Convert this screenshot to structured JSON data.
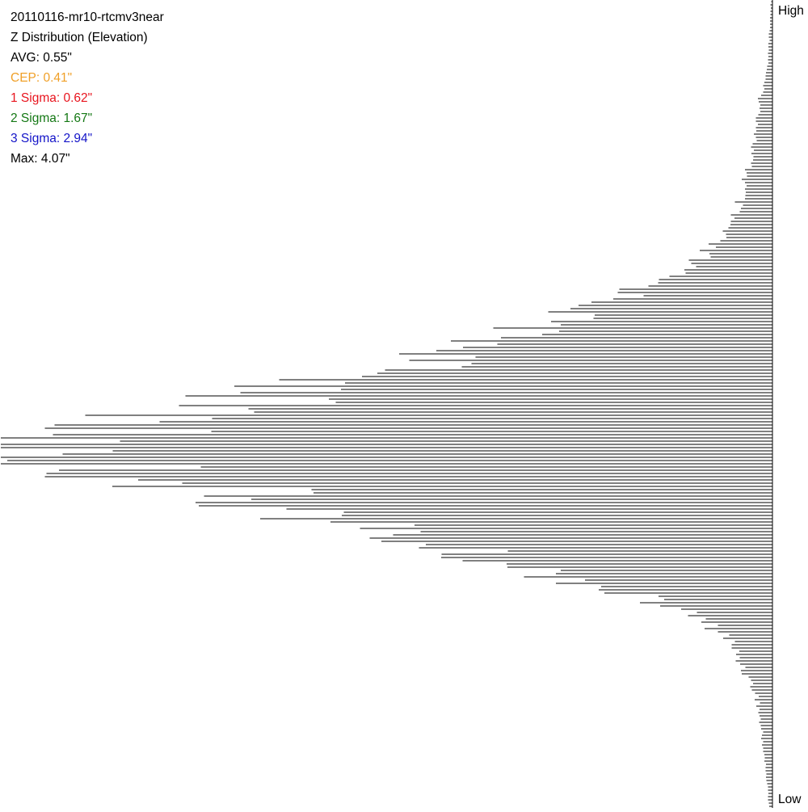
{
  "stats": {
    "title": "20110116-mr10-rtcmv3near",
    "subtitle": "Z Distribution (Elevation)",
    "avg": "AVG: 0.55\"",
    "cep": "CEP: 0.41\"",
    "sigma1": "1 Sigma: 0.62\"",
    "sigma2": "2 Sigma: 1.67\"",
    "sigma3": "3 Sigma: 2.94\"",
    "max": "Max: 4.07\""
  },
  "colors": {
    "text": "#000000",
    "cep": "#f0a028",
    "sigma1": "#e8141e",
    "sigma2": "#147814",
    "sigma3": "#1414c8",
    "bars": "#000000",
    "background": "#ffffff"
  },
  "axis": {
    "top_label": "High",
    "bottom_label": "Low"
  },
  "chart_data": {
    "type": "bar",
    "orientation": "horizontal",
    "grid": false,
    "bin_count": 250,
    "bars_extend_from": "right",
    "peak_bin": 137,
    "peak_value": 1.0,
    "value_scale": "relative (peak = 1)",
    "profile_points": [
      {
        "bin": 0,
        "value": 0.002
      },
      {
        "bin": 20,
        "value": 0.006
      },
      {
        "bin": 30,
        "value": 0.016
      },
      {
        "bin": 40,
        "value": 0.02
      },
      {
        "bin": 50,
        "value": 0.03
      },
      {
        "bin": 60,
        "value": 0.04
      },
      {
        "bin": 70,
        "value": 0.06
      },
      {
        "bin": 80,
        "value": 0.1
      },
      {
        "bin": 90,
        "value": 0.18
      },
      {
        "bin": 100,
        "value": 0.3
      },
      {
        "bin": 110,
        "value": 0.43
      },
      {
        "bin": 120,
        "value": 0.61
      },
      {
        "bin": 128,
        "value": 0.77
      },
      {
        "bin": 133,
        "value": 0.88
      },
      {
        "bin": 137,
        "value": 1.0
      },
      {
        "bin": 141,
        "value": 0.92
      },
      {
        "bin": 146,
        "value": 0.84
      },
      {
        "bin": 152,
        "value": 0.7
      },
      {
        "bin": 158,
        "value": 0.61
      },
      {
        "bin": 165,
        "value": 0.5
      },
      {
        "bin": 172,
        "value": 0.38
      },
      {
        "bin": 180,
        "value": 0.24
      },
      {
        "bin": 188,
        "value": 0.12
      },
      {
        "bin": 196,
        "value": 0.06
      },
      {
        "bin": 205,
        "value": 0.04
      },
      {
        "bin": 215,
        "value": 0.02
      },
      {
        "bin": 230,
        "value": 0.012
      },
      {
        "bin": 249,
        "value": 0.004
      }
    ]
  }
}
